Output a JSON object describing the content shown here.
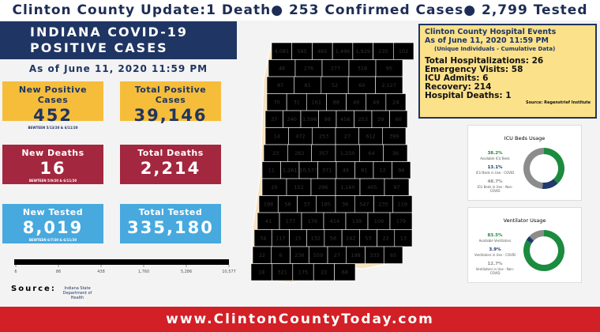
{
  "header": {
    "title": "Clinton County Update:1 Death● 253 Confirmed Cases● 2,799 Tested",
    "banner_line1": "INDIANA COVID-19",
    "banner_line2": "POSITIVE CASES",
    "as_of": "As of June 11, 2020 11:59 PM"
  },
  "stats": [
    {
      "label": "New Positive Cases",
      "value": "452",
      "note": "BEWTEEN 5/13/20 & 6/11/20"
    },
    {
      "label": "Total Positive Cases",
      "value": "39,146"
    },
    {
      "label": "New Deaths",
      "value": "16",
      "note": "BEWTEEN 5/9/20 & 6/11/20"
    },
    {
      "label": "Total Deaths",
      "value": "2,214"
    },
    {
      "label": "New Tested",
      "value": "8,019",
      "note": "BEWTEEN 6/7/20 & 6/11/20"
    },
    {
      "label": "Total Tested",
      "value": "335,180"
    }
  ],
  "map": {
    "rows": [
      [
        "4,081",
        "585",
        "465",
        "1,496",
        "1,929",
        "235",
        "102"
      ],
      [
        "48",
        "276",
        "277",
        "318",
        "95"
      ],
      [
        "87",
        "81",
        "52",
        "60",
        "2,127"
      ],
      [
        "70",
        "31",
        "161",
        "88",
        "49",
        "49",
        "24"
      ],
      [
        "37",
        "240",
        "1,596",
        "98",
        "458",
        "253",
        "29",
        "60"
      ],
      [
        "14",
        "472",
        "253",
        "27",
        "612",
        "399"
      ],
      [
        "23",
        "262",
        "357",
        "1,250",
        "64",
        "36"
      ],
      [
        "11",
        "1,261",
        "10,577",
        "371",
        "49",
        "81",
        "12",
        "96"
      ],
      [
        "20",
        "152",
        "296",
        "1,160",
        "405",
        "97"
      ],
      [
        "198",
        "56",
        "37",
        "185",
        "36",
        "547",
        "235",
        "119"
      ],
      [
        "41",
        "177",
        "176",
        "414",
        "139",
        "109",
        "179"
      ],
      [
        "34",
        "117",
        "15",
        "132",
        "56",
        "142",
        "53",
        "22",
        "13"
      ],
      [
        "22",
        "6",
        "236",
        "559",
        "27",
        "198",
        "333",
        "65"
      ],
      [
        "18",
        "321",
        "175",
        "22",
        "68"
      ]
    ],
    "legend": [
      "6",
      "86",
      "438",
      "1,760",
      "5,286",
      "10,577"
    ]
  },
  "source": {
    "label": "Source:",
    "org": "Indiana State Department of Health"
  },
  "hospital": {
    "title": "Clinton County Hospital Events",
    "as_of": "As of June 11, 2020 11:59 PM",
    "subtitle": "(Unique Individuals - Cumulative Data)",
    "lines": [
      "Total Hospitalizations: 26",
      "Emergency Visits: 58",
      "ICU Admits: 6",
      "Recovery: 214",
      "Hospital Deaths: 1"
    ],
    "source": "Source: Regenstrief Institute"
  },
  "donuts": [
    {
      "title": "ICU Beds Usage",
      "slices": [
        {
          "value": 38.2,
          "label": "38.2%",
          "name": "Available ICU Beds",
          "color": "#1c8b3f"
        },
        {
          "value": 13.1,
          "label": "13.1%",
          "name": "ICU Beds in Use - COVID",
          "color": "#1f3a6b"
        },
        {
          "value": 48.7,
          "label": "48.7%",
          "name": "ICU Beds in Use - Non-COVID",
          "color": "#8c8c8c"
        }
      ]
    },
    {
      "title": "Ventilator Usage",
      "slices": [
        {
          "value": 83.5,
          "label": "83.5%",
          "name": "Available Ventilators",
          "color": "#1c8b3f"
        },
        {
          "value": 3.9,
          "label": "3.9%",
          "name": "Ventilators in Use - COVID",
          "color": "#1f3a6b"
        },
        {
          "value": 12.7,
          "label": "12.7%",
          "name": "Ventilators in Use - Non-COVID",
          "color": "#8c8c8c"
        }
      ]
    }
  ],
  "footer": {
    "url": "www.ClintonCountyToday.com"
  }
}
